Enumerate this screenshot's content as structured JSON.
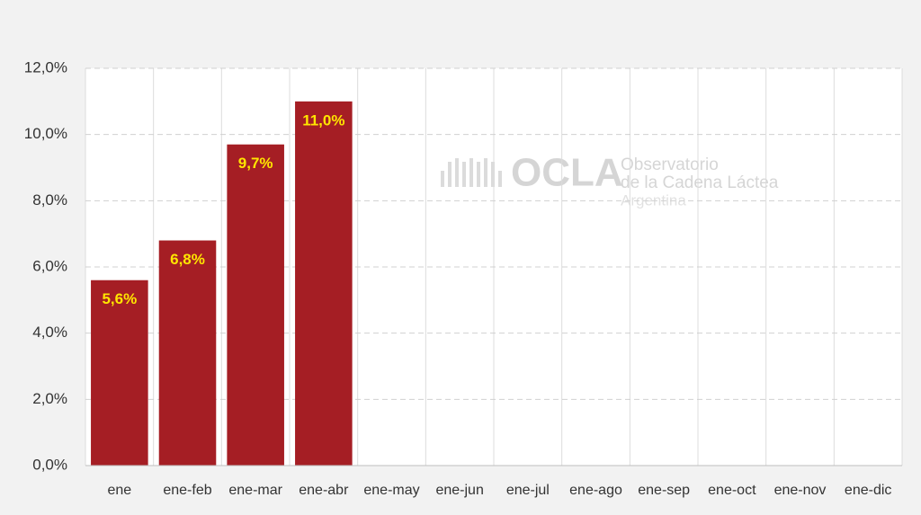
{
  "chart_data": {
    "type": "bar",
    "categories": [
      "ene",
      "ene-feb",
      "ene-mar",
      "ene-abr",
      "ene-may",
      "ene-jun",
      "ene-jul",
      "ene-ago",
      "ene-sep",
      "ene-oct",
      "ene-nov",
      "ene-dic"
    ],
    "values": [
      5.6,
      6.8,
      9.7,
      11.0,
      null,
      null,
      null,
      null,
      null,
      null,
      null,
      null
    ],
    "value_labels": [
      "5,6%",
      "6,8%",
      "9,7%",
      "11,0%",
      null,
      null,
      null,
      null,
      null,
      null,
      null,
      null
    ],
    "color": "#a51e24",
    "ylim": [
      0,
      12
    ],
    "yticks": [
      {
        "value": 0,
        "label": "0,0%"
      },
      {
        "value": 2,
        "label": "2,0%"
      },
      {
        "value": 4,
        "label": "4,0%"
      },
      {
        "value": 6,
        "label": "6,0%"
      },
      {
        "value": 8,
        "label": "8,0%"
      },
      {
        "value": 10,
        "label": "10,0%"
      },
      {
        "value": 12,
        "label": "12,0%"
      }
    ],
    "grid": true,
    "watermark": {
      "logo": "OCLA",
      "line1": "Observatorio",
      "line2": "de la Cadena Láctea",
      "line3": "Argentina"
    }
  }
}
